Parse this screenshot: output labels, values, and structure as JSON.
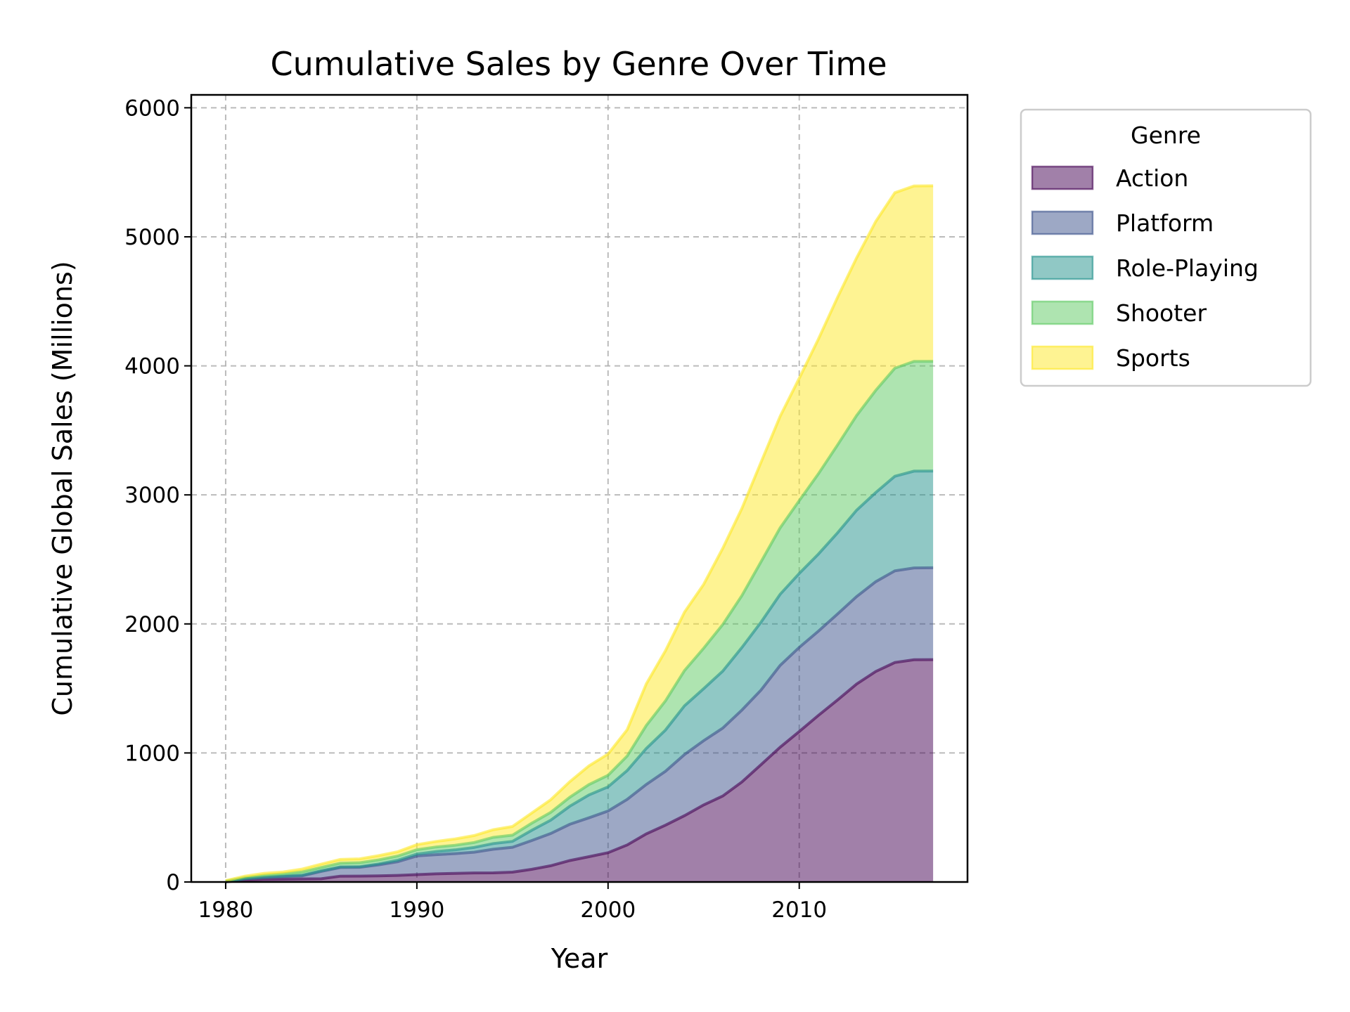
{
  "chart_data": {
    "type": "area",
    "stacked": true,
    "title": "Cumulative Sales by Genre Over Time",
    "xlabel": "Year",
    "ylabel": "Cumulative Global Sales (Millions)",
    "xlim": [
      1978.2,
      2018.8
    ],
    "ylim": [
      0,
      6100
    ],
    "xticks": [
      1980,
      1990,
      2000,
      2010
    ],
    "yticks": [
      0,
      1000,
      2000,
      3000,
      4000,
      5000,
      6000
    ],
    "grid": true,
    "legend": {
      "title": "Genre",
      "position": "outside-right"
    },
    "x": [
      1980,
      1981,
      1982,
      1983,
      1984,
      1985,
      1986,
      1987,
      1988,
      1989,
      1990,
      1991,
      1992,
      1993,
      1994,
      1995,
      1996,
      1997,
      1998,
      1999,
      2000,
      2001,
      2002,
      2003,
      2004,
      2005,
      2006,
      2007,
      2008,
      2009,
      2010,
      2011,
      2012,
      2013,
      2014,
      2015,
      2016,
      2017
    ],
    "series": [
      {
        "name": "Action",
        "color": "#440154",
        "values": [
          0.3,
          15,
          20,
          22,
          24,
          25,
          45,
          46,
          48,
          51,
          57,
          63,
          67,
          70,
          71,
          76,
          98,
          126,
          166,
          196,
          227,
          287,
          373,
          440,
          514,
          597,
          666,
          775,
          909,
          1044,
          1166,
          1291,
          1410,
          1534,
          1631,
          1701,
          1722,
          1723
        ]
      },
      {
        "name": "Platform",
        "color": "#3b528b",
        "values": [
          0,
          10,
          16,
          20,
          24,
          57,
          67,
          68,
          85,
          106,
          145,
          149,
          153,
          161,
          183,
          193,
          223,
          250,
          281,
          301,
          323,
          353,
          383,
          418,
          474,
          498,
          526,
          557,
          578,
          634,
          652,
          653,
          666,
          678,
          696,
          710,
          712,
          712
        ]
      },
      {
        "name": "Role-Playing",
        "color": "#21918c",
        "values": [
          0,
          0,
          0,
          3,
          5,
          5,
          5,
          5,
          7,
          12,
          15,
          24,
          29,
          37,
          44,
          46,
          79,
          103,
          140,
          177,
          187,
          224,
          279,
          319,
          378,
          403,
          442,
          485,
          526,
          551,
          573,
          597,
          629,
          669,
          691,
          733,
          750,
          750
        ]
      },
      {
        "name": "Shooter",
        "color": "#5ec962",
        "values": [
          7,
          10,
          15,
          18,
          25,
          26,
          29,
          30,
          31,
          32,
          33,
          35,
          36,
          38,
          48,
          48,
          55,
          60,
          70,
          81,
          90,
          112,
          178,
          226,
          273,
          313,
          361,
          402,
          468,
          515,
          564,
          622,
          681,
          734,
          792,
          838,
          850,
          850
        ]
      },
      {
        "name": "Sports",
        "color": "#fde725",
        "values": [
          3,
          10,
          16,
          15,
          22,
          26,
          29,
          30,
          33,
          34,
          40,
          43,
          49,
          54,
          59,
          67,
          79,
          98,
          121,
          145,
          165,
          204,
          323,
          389,
          453,
          495,
          591,
          676,
          771,
          864,
          949,
          1044,
          1144,
          1222,
          1309,
          1360,
          1360,
          1360
        ]
      }
    ]
  }
}
